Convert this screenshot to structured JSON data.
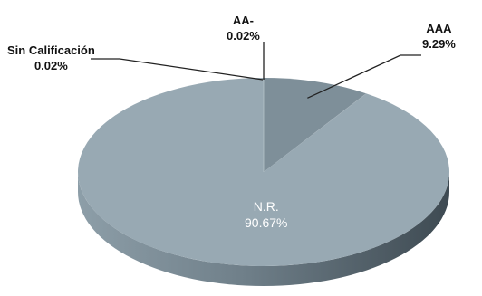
{
  "chart_data": {
    "type": "pie",
    "style": "3d",
    "title": "",
    "slices": [
      {
        "label": "AAA",
        "value": 9.29,
        "value_text": "9.29%",
        "color": "#7e8f99"
      },
      {
        "label": "AA-",
        "value": 0.02,
        "value_text": "0.02%",
        "color": "#7e8f99"
      },
      {
        "label": "Sin Calificación",
        "value": 0.02,
        "value_text": "0.02%",
        "color": "#7e8f99"
      },
      {
        "label": "N.R.",
        "value": 90.67,
        "value_text": "90.67%",
        "color": "#98a9b3"
      }
    ],
    "side_colors": {
      "dark": "#3e4a52",
      "light": "#8d9ea8"
    }
  }
}
